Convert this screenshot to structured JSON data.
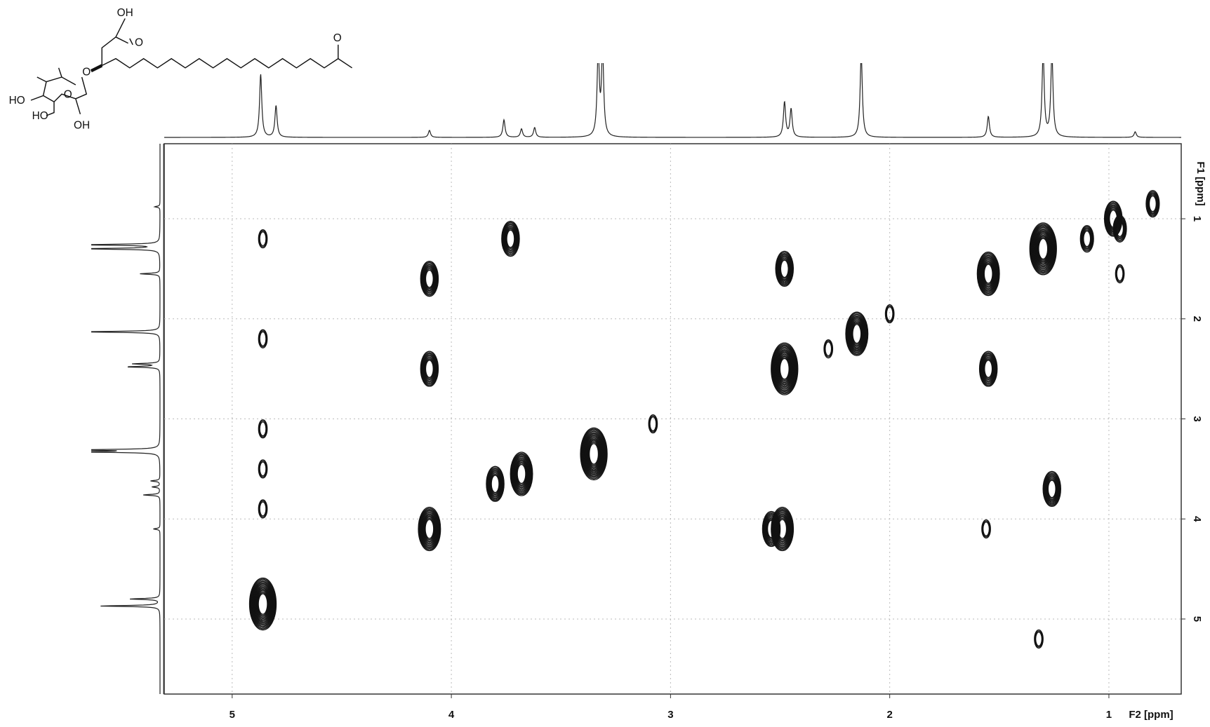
{
  "chart_data": {
    "type": "2d-nmr",
    "xlabel": "F2 [ppm]",
    "ylabel": "F1 [ppm]",
    "xlim": [
      5.31,
      0.67
    ],
    "ylim": [
      0.25,
      5.75
    ],
    "xticks": [
      5,
      4,
      3,
      2,
      1
    ],
    "yticks": [
      1,
      2,
      3,
      4,
      5
    ],
    "grid": true,
    "color": "#111111",
    "peaks": {
      "f2": [
        4.86,
        4.86,
        4.86,
        4.86,
        4.86,
        4.86,
        4.1,
        4.1,
        4.1,
        3.73,
        3.68,
        3.8,
        3.35,
        3.08,
        2.48,
        2.48,
        2.49,
        2.54,
        2.15,
        2.0,
        2.28,
        1.55,
        1.55,
        1.56,
        1.3,
        1.26,
        1.32,
        1.1,
        0.98,
        0.95,
        0.8,
        0.95
      ],
      "f1": [
        4.85,
        1.2,
        2.2,
        3.1,
        3.5,
        3.9,
        1.6,
        2.5,
        4.1,
        1.2,
        3.55,
        3.65,
        3.35,
        3.05,
        1.5,
        2.5,
        4.1,
        4.1,
        2.15,
        1.95,
        2.3,
        1.55,
        2.5,
        4.1,
        1.3,
        3.7,
        5.2,
        1.2,
        1.0,
        1.1,
        0.85,
        1.55
      ],
      "size": [
        5,
        1,
        1,
        1,
        1,
        1,
        3,
        3,
        4,
        3,
        4,
        3,
        5,
        1,
        3,
        5,
        4,
        3,
        4,
        1,
        1,
        4,
        3,
        1,
        5,
        3,
        1,
        2,
        3,
        2,
        2,
        1
      ]
    },
    "projection": {
      "ppm": [
        4.87,
        4.8,
        4.1,
        3.76,
        3.68,
        3.62,
        3.33,
        3.31,
        2.48,
        2.45,
        2.13,
        1.55,
        1.3,
        1.26,
        0.88
      ],
      "height": [
        0.9,
        0.45,
        0.1,
        0.25,
        0.12,
        0.14,
        1.2,
        1.2,
        0.5,
        0.4,
        1.2,
        0.3,
        1.2,
        1.2,
        0.08
      ]
    }
  },
  "structure": {
    "labels": [
      "OH",
      "O",
      "O",
      "O",
      "HO",
      "HO",
      "OH",
      "O"
    ]
  }
}
